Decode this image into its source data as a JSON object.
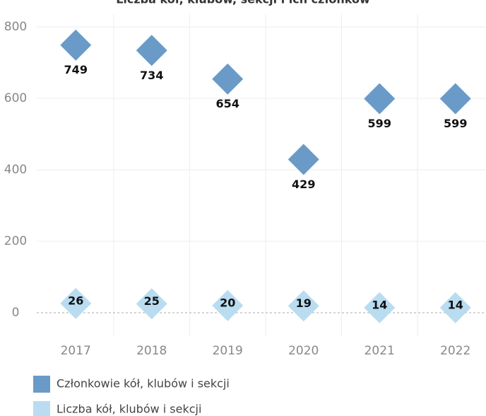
{
  "chart_data": {
    "type": "scatter",
    "title": "Liczba kół, klubów, sekcji i ich członków",
    "categories": [
      "2017",
      "2018",
      "2019",
      "2020",
      "2021",
      "2022"
    ],
    "series": [
      {
        "name": "Członkowie kół, klubów i sekcji",
        "color": "#6a9bc8",
        "values": [
          749,
          734,
          654,
          429,
          599,
          599
        ]
      },
      {
        "name": "Liczba kół, klubów i sekcji",
        "color": "#b9dcf1",
        "values": [
          26,
          25,
          20,
          19,
          14,
          14
        ]
      }
    ],
    "ylim": [
      -65,
      835
    ],
    "yticks": [
      0,
      200,
      400,
      600,
      800
    ],
    "grid": true
  }
}
